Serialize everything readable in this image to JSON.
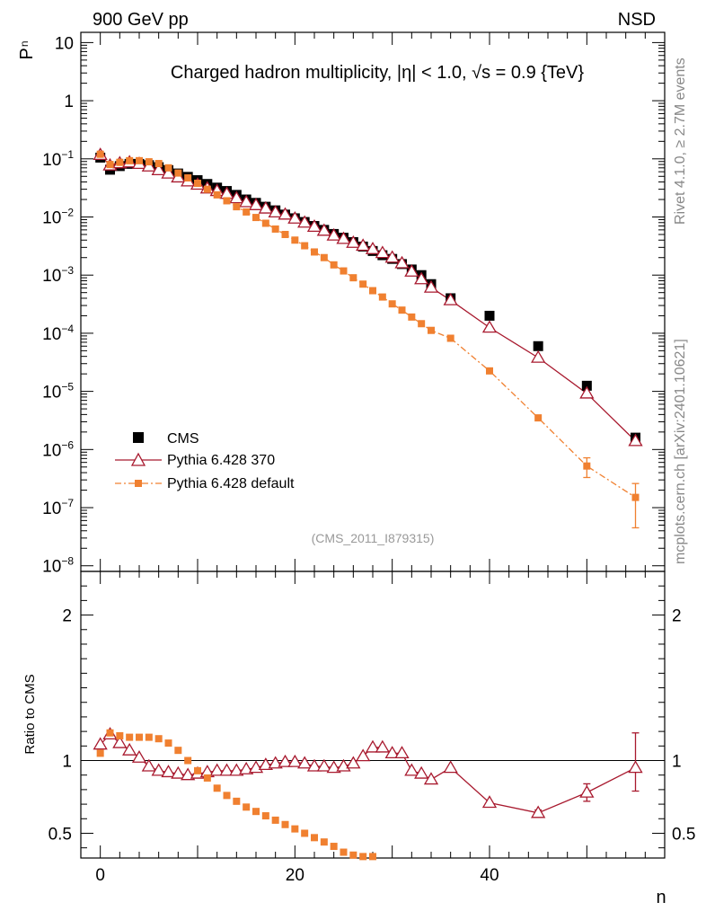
{
  "header": {
    "left_label": "900 GeV pp",
    "right_label": "NSD"
  },
  "side_labels": {
    "rivet": "Rivet 4.1.0, ≥ 2.7M events",
    "mcplots": "mcplots.cern.ch [arXiv:2401.10621]"
  },
  "chart_data": [
    {
      "type": "scatter",
      "panel": "main",
      "title": "Charged hadron multiplicity, |η| < 1.0, √s = 0.9 {TeV}",
      "xlabel": "n",
      "ylabel": "Pn",
      "ylabel_main": "P",
      "ylabel_sub": "n",
      "yscale": "log",
      "xlim": [
        -2,
        58
      ],
      "ylim": [
        8e-09,
        15
      ],
      "watermark": "(CMS_2011_I879315)",
      "yticks": [
        {
          "v": 10,
          "label": "10"
        },
        {
          "v": 1,
          "label": "1"
        },
        {
          "v": 0.1,
          "mant": "10",
          "exp": "−1"
        },
        {
          "v": 0.01,
          "mant": "10",
          "exp": "−2"
        },
        {
          "v": 0.001,
          "mant": "10",
          "exp": "−3"
        },
        {
          "v": 0.0001,
          "mant": "10",
          "exp": "−4"
        },
        {
          "v": 1e-05,
          "mant": "10",
          "exp": "−5"
        },
        {
          "v": 1e-06,
          "mant": "10",
          "exp": "−6"
        },
        {
          "v": 1e-07,
          "mant": "10",
          "exp": "−7"
        },
        {
          "v": 1e-08,
          "mant": "10",
          "exp": "−8"
        }
      ],
      "series": [
        {
          "name": "CMS",
          "color": "#000000",
          "marker": "square",
          "x": [
            0,
            1,
            2,
            3,
            4,
            5,
            6,
            7,
            8,
            9,
            10,
            11,
            12,
            13,
            14,
            15,
            16,
            17,
            18,
            19,
            20,
            21,
            22,
            23,
            24,
            25,
            26,
            27,
            28,
            29,
            30,
            31,
            32,
            33,
            34,
            36,
            40,
            45,
            50,
            55
          ],
          "y": [
            0.105,
            0.065,
            0.075,
            0.082,
            0.082,
            0.078,
            0.072,
            0.064,
            0.056,
            0.049,
            0.043,
            0.037,
            0.032,
            0.028,
            0.024,
            0.02,
            0.0175,
            0.015,
            0.013,
            0.011,
            0.0095,
            0.0082,
            0.007,
            0.006,
            0.0051,
            0.0044,
            0.0037,
            0.0031,
            0.0026,
            0.0022,
            0.0019,
            0.00155,
            0.00125,
            0.001,
            0.0007,
            0.0004,
            0.0002,
            6e-05,
            1.25e-05,
            1.6e-06
          ]
        },
        {
          "name": "Pythia 6.428 370",
          "color": "#a8192e",
          "marker": "triangle",
          "x": [
            0,
            1,
            2,
            3,
            4,
            5,
            6,
            7,
            8,
            9,
            10,
            11,
            12,
            13,
            14,
            15,
            16,
            17,
            18,
            19,
            20,
            21,
            22,
            23,
            24,
            25,
            26,
            27,
            28,
            29,
            30,
            31,
            32,
            33,
            34,
            36,
            40,
            45,
            50,
            55
          ],
          "y": [
            0.117,
            0.077,
            0.084,
            0.087,
            0.082,
            0.074,
            0.064,
            0.056,
            0.048,
            0.041,
            0.036,
            0.031,
            0.028,
            0.025,
            0.021,
            0.018,
            0.016,
            0.014,
            0.012,
            0.011,
            0.0094,
            0.008,
            0.0068,
            0.0058,
            0.0048,
            0.0042,
            0.0036,
            0.0032,
            0.0028,
            0.0024,
            0.002,
            0.0016,
            0.00115,
            0.00085,
            0.00061,
            0.00037,
            0.000125,
            3.8e-05,
            9.2e-06,
            1.4e-06
          ]
        },
        {
          "name": "Pythia 6.428 default",
          "color": "#f08030",
          "marker": "square-small",
          "dashed": true,
          "x": [
            0,
            1,
            2,
            3,
            4,
            5,
            6,
            7,
            8,
            9,
            10,
            11,
            12,
            13,
            14,
            15,
            16,
            17,
            18,
            19,
            20,
            21,
            22,
            23,
            24,
            25,
            26,
            27,
            28,
            29,
            30,
            31,
            32,
            33,
            34,
            36,
            40,
            45,
            50,
            55
          ],
          "y": [
            0.12,
            0.08,
            0.087,
            0.093,
            0.093,
            0.089,
            0.083,
            0.07,
            0.057,
            0.047,
            0.038,
            0.03,
            0.024,
            0.019,
            0.015,
            0.0122,
            0.0098,
            0.0078,
            0.0062,
            0.005,
            0.004,
            0.0032,
            0.0025,
            0.002,
            0.0015,
            0.00118,
            0.0009,
            0.0007,
            0.00054,
            0.00042,
            0.00032,
            0.00025,
            0.00019,
            0.000146,
            0.000112,
            8.2e-05,
            2.25e-05,
            3.5e-06,
            5.2e-07,
            1.5e-07
          ],
          "err_x": [
            50,
            55
          ],
          "err_lo": [
            3.3e-07,
            4.5e-08
          ],
          "err_hi": [
            7.2e-07,
            2.6e-07
          ]
        }
      ]
    },
    {
      "type": "line",
      "panel": "ratio",
      "ylabel": "Ratio to CMS",
      "xlim": [
        -2,
        58
      ],
      "ylim": [
        0.33,
        2.3
      ],
      "xticks": [
        0,
        20,
        40
      ],
      "yticks": [
        0.5,
        1,
        2
      ],
      "reference_line": 1,
      "series": [
        {
          "name": "Pythia 6.428 370",
          "color": "#a8192e",
          "marker": "triangle",
          "x": [
            0,
            1,
            2,
            3,
            4,
            5,
            6,
            7,
            8,
            9,
            10,
            11,
            12,
            13,
            14,
            15,
            16,
            17,
            18,
            19,
            20,
            21,
            22,
            23,
            24,
            25,
            26,
            27,
            28,
            29,
            30,
            31,
            32,
            33,
            34,
            36,
            40,
            45,
            50,
            55
          ],
          "y": [
            1.11,
            1.18,
            1.12,
            1.07,
            1.02,
            0.96,
            0.93,
            0.92,
            0.91,
            0.9,
            0.91,
            0.92,
            0.93,
            0.93,
            0.93,
            0.94,
            0.95,
            0.97,
            0.98,
            0.99,
            0.99,
            0.98,
            0.96,
            0.96,
            0.95,
            0.96,
            0.98,
            1.03,
            1.09,
            1.09,
            1.05,
            1.05,
            0.93,
            0.91,
            0.87,
            0.95,
            0.71,
            0.64,
            0.78,
            0.95
          ],
          "err_x": [
            45,
            50,
            55
          ],
          "err_lo": [
            0.62,
            0.72,
            0.79
          ],
          "err_hi": [
            0.66,
            0.84,
            1.19
          ]
        },
        {
          "name": "Pythia 6.428 default",
          "color": "#f08030",
          "marker": "square-small",
          "x": [
            0,
            1,
            2,
            3,
            4,
            5,
            6,
            7,
            8,
            9,
            10,
            11,
            12,
            13,
            14,
            15,
            16,
            17,
            18,
            19,
            20,
            21,
            22,
            23,
            24,
            25,
            26,
            27,
            28
          ],
          "y": [
            1.05,
            1.19,
            1.17,
            1.16,
            1.16,
            1.16,
            1.15,
            1.12,
            1.07,
            1.0,
            0.93,
            0.88,
            0.81,
            0.76,
            0.72,
            0.68,
            0.65,
            0.62,
            0.59,
            0.56,
            0.53,
            0.5,
            0.47,
            0.44,
            0.41,
            0.37,
            0.35,
            0.34,
            0.34
          ]
        }
      ]
    }
  ]
}
